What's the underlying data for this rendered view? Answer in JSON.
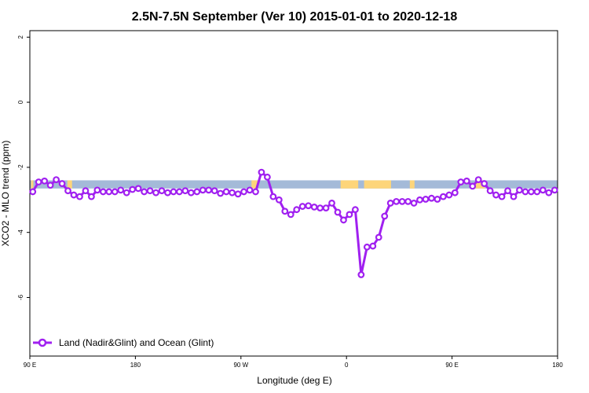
{
  "chart_data": {
    "type": "line",
    "title": "2.5N-7.5N September (Ver 10)   2015-01-01 to 2020-12-18",
    "xlabel": "Longitude (deg E)",
    "ylabel": "XCO2 - MLO trend (ppm)",
    "x_ticks": [
      {
        "value": 90,
        "label": "90 E"
      },
      {
        "value": 180,
        "label": "180"
      },
      {
        "value": 270,
        "label": "90 W"
      },
      {
        "value": 360,
        "label": "0"
      },
      {
        "value": 450,
        "label": "90 E"
      },
      {
        "value": 540,
        "label": "180"
      }
    ],
    "y_ticks": [
      {
        "value": 2,
        "label": "2"
      },
      {
        "value": 0,
        "label": "0"
      },
      {
        "value": -2,
        "label": "-2"
      },
      {
        "value": -4,
        "label": "-4"
      },
      {
        "value": -6,
        "label": "-6"
      }
    ],
    "xlim": [
      90,
      540
    ],
    "ylim": [
      -7.8,
      2.2
    ],
    "land_ocean_band": {
      "y_range": [
        -2.65,
        -2.4
      ],
      "ocean_color": "#a4bad8",
      "land_color": "#fdd57a",
      "land_segments": [
        [
          91,
          93
        ],
        [
          122,
          126
        ],
        [
          279,
          284
        ],
        [
          355,
          370
        ],
        [
          375,
          398
        ],
        [
          414,
          418
        ],
        [
          470,
          478
        ]
      ]
    },
    "series": [
      {
        "name": "Land (Nadir&Glint) and Ocean (Glint)",
        "color": "#a020f0",
        "x": [
          92.5,
          97.5,
          102.5,
          107.5,
          112.5,
          117.5,
          122.5,
          127.5,
          132.5,
          137.5,
          142.5,
          147.5,
          152.5,
          157.5,
          162.5,
          167.5,
          172.5,
          177.5,
          182.5,
          187.5,
          192.5,
          197.5,
          202.5,
          207.5,
          212.5,
          217.5,
          222.5,
          227.5,
          232.5,
          237.5,
          242.5,
          247.5,
          252.5,
          257.5,
          262.5,
          267.5,
          272.5,
          277.5,
          282.5,
          287.5,
          292.5,
          297.5,
          302.5,
          307.5,
          312.5,
          317.5,
          322.5,
          327.5,
          332.5,
          337.5,
          342.5,
          347.5,
          352.5,
          357.5,
          362.5,
          367.5,
          372.5,
          377.5,
          382.5,
          387.5,
          392.5,
          397.5,
          402.5,
          407.5,
          412.5,
          417.5,
          422.5,
          427.5,
          432.5,
          437.5,
          442.5,
          447.5,
          452.5,
          457.5,
          462.5,
          467.5,
          472.5,
          477.5,
          482.5,
          487.5,
          492.5,
          497.5,
          502.5,
          507.5,
          512.5,
          517.5,
          522.5,
          527.5,
          532.5,
          537.5
        ],
        "y": [
          -2.75,
          -2.45,
          -2.42,
          -2.55,
          -2.38,
          -2.5,
          -2.72,
          -2.85,
          -2.9,
          -2.72,
          -2.9,
          -2.7,
          -2.75,
          -2.75,
          -2.75,
          -2.7,
          -2.78,
          -2.68,
          -2.65,
          -2.75,
          -2.72,
          -2.78,
          -2.72,
          -2.78,
          -2.75,
          -2.75,
          -2.72,
          -2.78,
          -2.75,
          -2.7,
          -2.7,
          -2.72,
          -2.8,
          -2.75,
          -2.78,
          -2.82,
          -2.75,
          -2.7,
          -2.75,
          -2.15,
          -2.3,
          -2.9,
          -3.0,
          -3.35,
          -3.45,
          -3.3,
          -3.2,
          -3.18,
          -3.22,
          -3.25,
          -3.25,
          -3.1,
          -3.38,
          -3.62,
          -3.45,
          -3.3,
          -5.3,
          -4.45,
          -4.42,
          -4.15,
          -3.5,
          -3.1,
          -3.05,
          -3.05,
          -3.05,
          -3.1,
          -3.0,
          -2.98,
          -2.95,
          -2.98,
          -2.9,
          -2.85,
          -2.78,
          -2.45,
          -2.42,
          -2.58,
          -2.38,
          -2.5,
          -2.72,
          -2.85,
          -2.9,
          -2.72,
          -2.9,
          -2.7,
          -2.75,
          -2.75,
          -2.75,
          -2.7,
          -2.78,
          -2.7
        ]
      }
    ],
    "legend": {
      "position": "bottom-left"
    },
    "grid": false
  }
}
